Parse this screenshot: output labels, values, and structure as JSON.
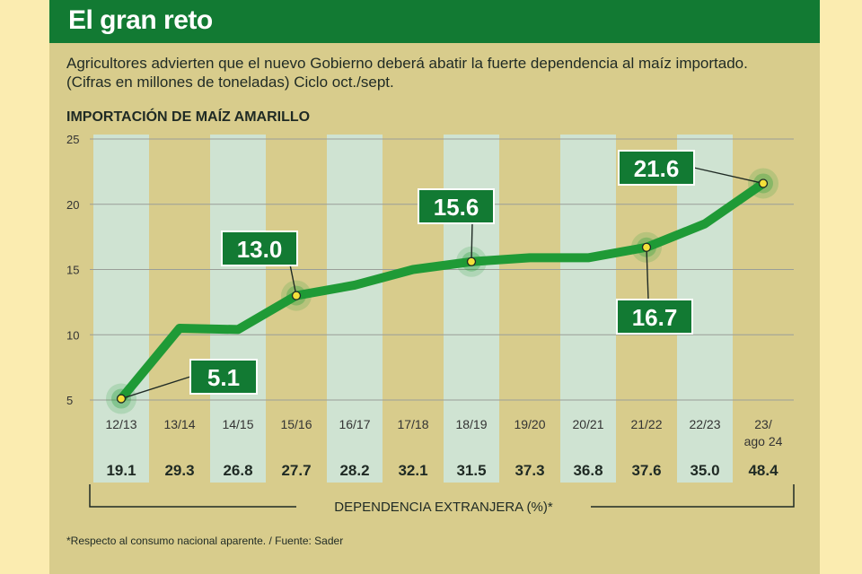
{
  "header": {
    "title": "El gran reto",
    "subtitle": "Agricultores advierten que el nuevo Gobierno deberá abatir la fuerte dependencia al maíz importado. (Cifras en millones de toneladas) Ciclo oct./sept."
  },
  "footnote": "*Respecto al consumo nacional aparente. / Fuente: Sader",
  "colors": {
    "header": "#127a33",
    "line": "#1f9a36",
    "band_light": "#cfe3d2",
    "band_dark": "#d8cc8c",
    "marker": "#f3e03a"
  },
  "chart_data": {
    "type": "line",
    "title": "IMPORTACIÓN DE MAÍZ AMARILLO",
    "categories": [
      "12/13",
      "13/14",
      "14/15",
      "15/16",
      "16/17",
      "17/18",
      "18/19",
      "19/20",
      "20/21",
      "21/22",
      "22/23",
      "23/ ago 24"
    ],
    "category_lines": [
      [
        "12/13"
      ],
      [
        "13/14"
      ],
      [
        "14/15"
      ],
      [
        "15/16"
      ],
      [
        "16/17"
      ],
      [
        "17/18"
      ],
      [
        "18/19"
      ],
      [
        "19/20"
      ],
      [
        "20/21"
      ],
      [
        "21/22"
      ],
      [
        "22/23"
      ],
      [
        "23/",
        "ago 24"
      ]
    ],
    "series": [
      {
        "values": [
          5.1,
          10.5,
          10.4,
          13.0,
          13.8,
          15.0,
          15.6,
          15.9,
          15.9,
          16.7,
          18.5,
          21.6
        ]
      }
    ],
    "ylim": [
      5,
      25
    ],
    "yticks": [
      "5",
      "10",
      "15",
      "20",
      "25"
    ],
    "grid": true,
    "highlighted": [
      {
        "index": 0,
        "label": "5.1"
      },
      {
        "index": 3,
        "label": "13.0"
      },
      {
        "index": 6,
        "label": "15.6"
      },
      {
        "index": 9,
        "label": "16.7"
      },
      {
        "index": 11,
        "label": "21.6"
      }
    ],
    "dependency": {
      "label": "DEPENDENCIA EXTRANJERA (%)*",
      "values": [
        "19.1",
        "29.3",
        "26.8",
        "27.7",
        "28.2",
        "32.1",
        "31.5",
        "37.3",
        "36.8",
        "37.6",
        "35.0",
        "48.4"
      ]
    }
  }
}
